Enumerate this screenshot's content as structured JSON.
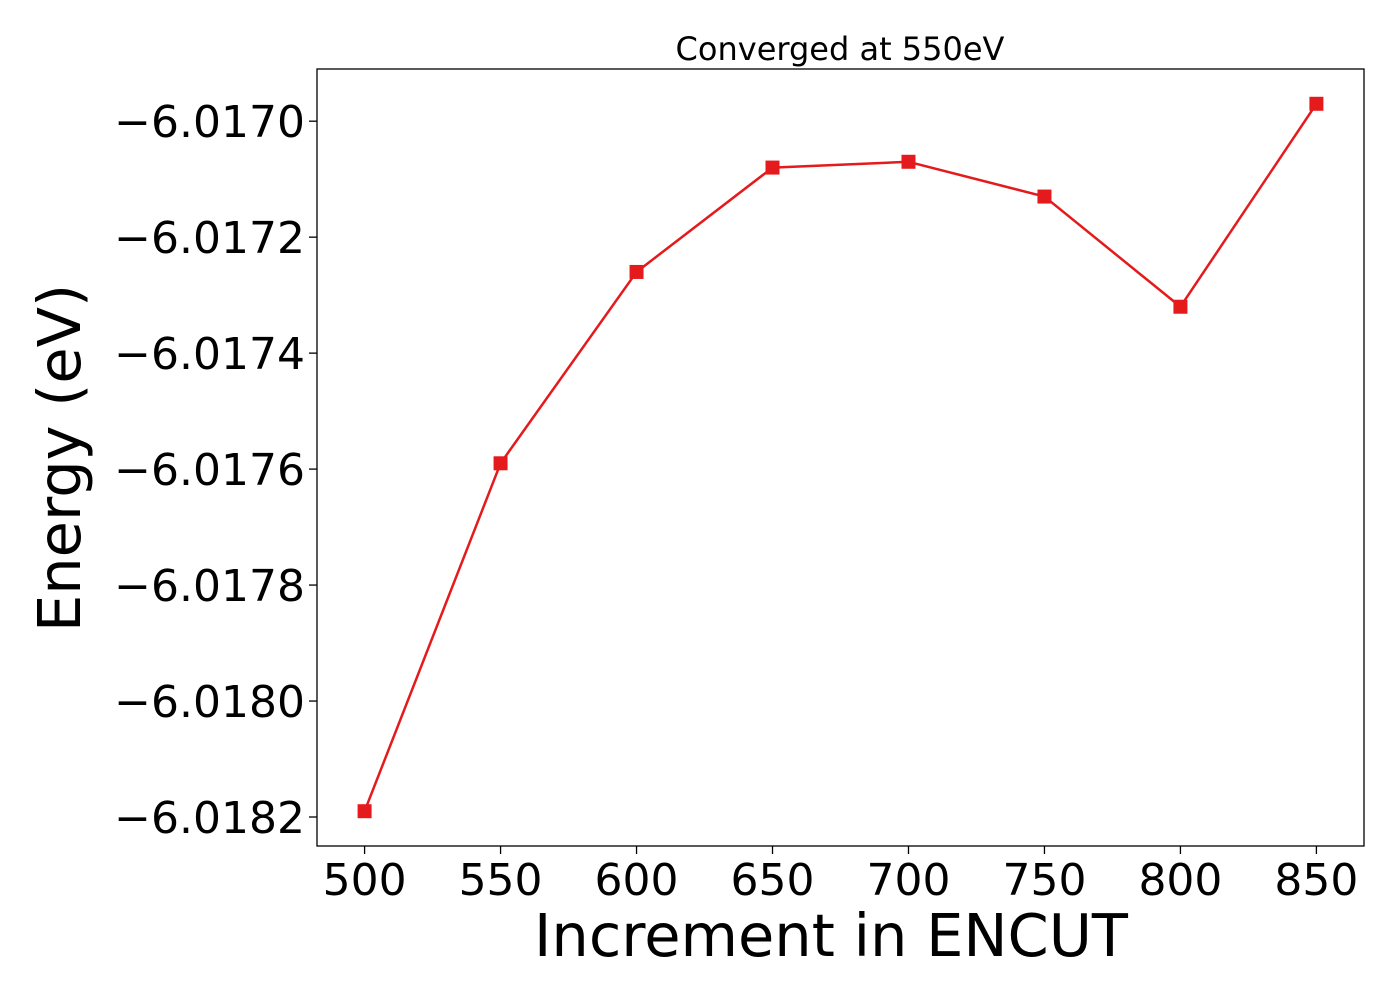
{
  "chart_data": {
    "type": "line",
    "title": "Converged at 550eV",
    "xlabel": "Increment in ENCUT",
    "ylabel": "Energy (eV)",
    "x": [
      500,
      550,
      600,
      650,
      700,
      750,
      800,
      850
    ],
    "series": [
      {
        "values": [
          -6.01819,
          -6.01759,
          -6.01726,
          -6.01708,
          -6.01707,
          -6.01713,
          -6.01732,
          -6.01697
        ],
        "color": "#e41a1c",
        "marker": "square"
      }
    ],
    "xticks": [
      500,
      550,
      600,
      650,
      700,
      750,
      800,
      850
    ],
    "xtick_labels": [
      "500",
      "550",
      "600",
      "650",
      "700",
      "750",
      "800",
      "850"
    ],
    "yticks": [
      -6.0182,
      -6.018,
      -6.0178,
      -6.0176,
      -6.0174,
      -6.0172,
      -6.017
    ],
    "ytick_labels": [
      "−6.0182",
      "−6.0180",
      "−6.0178",
      "−6.0176",
      "−6.0174",
      "−6.0172",
      "−6.0170"
    ],
    "xlim": [
      482.5,
      867.5
    ],
    "ylim": [
      -6.01825,
      -6.01691
    ],
    "grid": false,
    "legend": "none"
  }
}
